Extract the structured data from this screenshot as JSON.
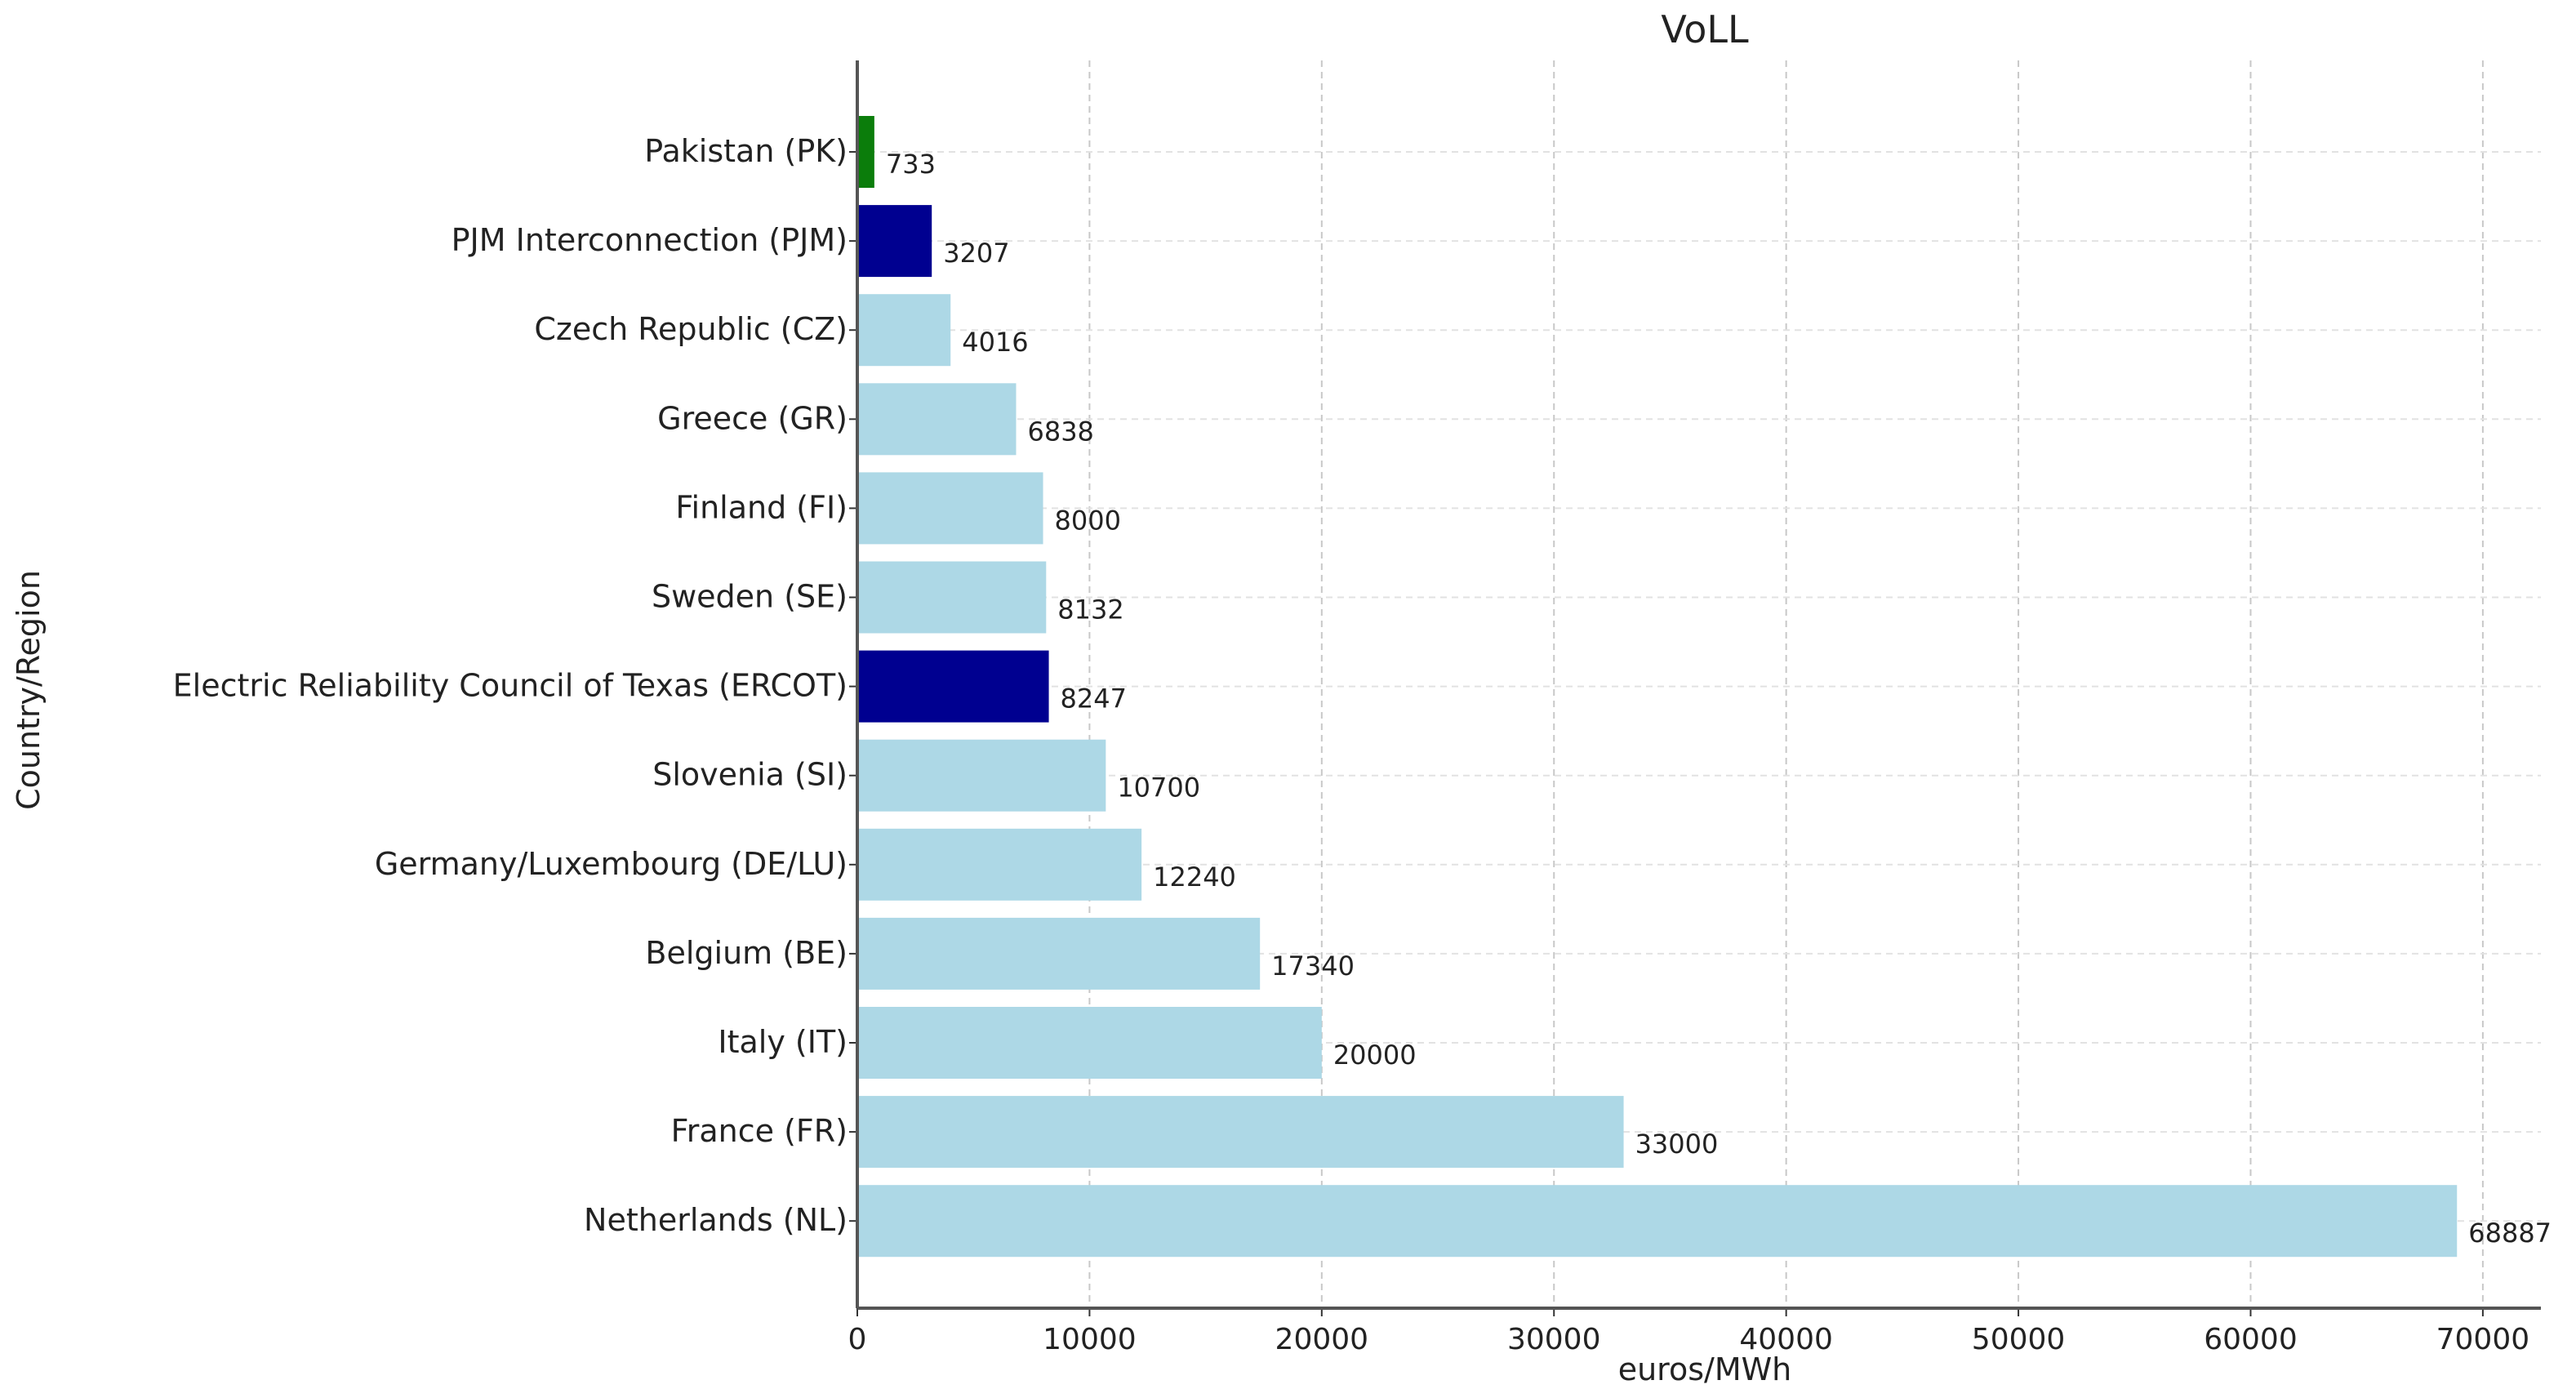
{
  "chart_data": {
    "type": "bar",
    "orientation": "horizontal",
    "title": "VoLL",
    "xlabel": "euros/MWh",
    "ylabel": "Country/Region",
    "xlim": [
      0,
      72500
    ],
    "xticks": [
      0,
      10000,
      20000,
      30000,
      40000,
      50000,
      60000,
      70000
    ],
    "xtick_labels": [
      "0",
      "10000",
      "20000",
      "30000",
      "40000",
      "50000",
      "60000",
      "70000"
    ],
    "grid": true,
    "categories": [
      "Pakistan (PK)",
      "PJM Interconnection (PJM)",
      "Czech Republic (CZ)",
      "Greece (GR)",
      "Finland (FI)",
      "Sweden (SE)",
      "Electric Reliability Council of Texas (ERCOT)",
      "Slovenia (SI)",
      "Germany/Luxembourg (DE/LU)",
      "Belgium (BE)",
      "Italy (IT)",
      "France (FR)",
      "Netherlands (NL)"
    ],
    "values": [
      733,
      3207,
      4016,
      6838,
      8000,
      8132,
      8247,
      10700,
      12240,
      17340,
      20000,
      33000,
      68887
    ],
    "value_labels": [
      "733",
      "3207",
      "4016",
      "6838",
      "8000",
      "8132",
      "8247",
      "10700",
      "12240",
      "17340",
      "20000",
      "33000",
      "68887"
    ],
    "bar_colors": [
      "#0b7d0b",
      "#000090",
      "#add8e6",
      "#add8e6",
      "#add8e6",
      "#add8e6",
      "#000090",
      "#add8e6",
      "#add8e6",
      "#add8e6",
      "#add8e6",
      "#add8e6",
      "#add8e6"
    ]
  }
}
